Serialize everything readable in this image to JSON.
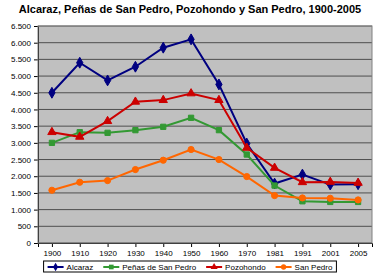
{
  "chart_data": {
    "type": "line",
    "title": "Alcaraz, Peñas de San Pedro, Pozohondo y San Pedro, 1900-2005",
    "categories": [
      "1900",
      "1910",
      "1920",
      "1930",
      "1940",
      "1950",
      "1960",
      "1970",
      "1981",
      "1991",
      "2001",
      "2005"
    ],
    "series": [
      {
        "name": "Alcaraz",
        "color": "#000080",
        "marker": "diamond",
        "values": [
          4500,
          5400,
          4870,
          5280,
          5850,
          6100,
          4750,
          2980,
          1780,
          2050,
          1750,
          1760
        ]
      },
      {
        "name": "Peñas de San Pedro",
        "color": "#339933",
        "marker": "square",
        "values": [
          3000,
          3320,
          3300,
          3380,
          3480,
          3750,
          3380,
          2650,
          1720,
          1250,
          1230,
          1230
        ]
      },
      {
        "name": "Pozohondo",
        "color": "#cc0000",
        "marker": "triangle",
        "values": [
          3320,
          3180,
          3650,
          4230,
          4280,
          4480,
          4280,
          2850,
          2250,
          1820,
          1830,
          1800
        ]
      },
      {
        "name": "San Pedro",
        "color": "#ff6600",
        "marker": "circle",
        "values": [
          1580,
          1820,
          1870,
          2200,
          2480,
          2800,
          2500,
          1990,
          1420,
          1350,
          1340,
          1290
        ]
      }
    ],
    "ylim": [
      0,
      6500
    ],
    "yticks": [
      0,
      500,
      {
        "value": 1000,
        "label": "1.000"
      },
      {
        "value": 1500,
        "label": "1.500"
      },
      {
        "value": 2000,
        "label": "2.000"
      },
      {
        "value": 2500,
        "label": "2.500"
      },
      {
        "value": 3000,
        "label": "3.000"
      },
      {
        "value": 3500,
        "label": "3.500"
      },
      {
        "value": 4000,
        "label": "4.000"
      },
      {
        "value": 4500,
        "label": "4.500"
      },
      {
        "value": 5000,
        "label": "5.000"
      },
      {
        "value": 5500,
        "label": "5.500"
      },
      {
        "value": 6000,
        "label": "6.000"
      },
      {
        "value": 6500,
        "label": "6.500"
      }
    ],
    "grid": true,
    "legend": "bottom"
  }
}
